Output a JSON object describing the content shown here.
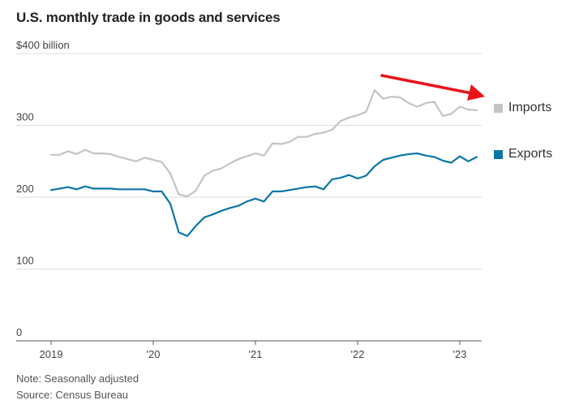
{
  "chart_data": {
    "type": "line",
    "title": "U.S. monthly trade in goods and services",
    "y_unit_label": "$400 billion",
    "ylim": [
      0,
      400
    ],
    "y_ticks": [
      {
        "value": 400,
        "label": "$400 billion"
      },
      {
        "value": 300,
        "label": "300"
      },
      {
        "value": 200,
        "label": "200"
      },
      {
        "value": 100,
        "label": "100"
      },
      {
        "value": 0,
        "label": "0"
      }
    ],
    "x_ticks": [
      {
        "value": "2019-01",
        "label": "2019"
      },
      {
        "value": "2020-01",
        "label": "'20"
      },
      {
        "value": "2021-01",
        "label": "'21"
      },
      {
        "value": "2022-01",
        "label": "'22"
      },
      {
        "value": "2023-01",
        "label": "'23"
      }
    ],
    "x_start": "2019-01",
    "x_end": "2023-02",
    "grid": true,
    "series": [
      {
        "name": "Imports",
        "color": "#c4c4c4",
        "values": [
          259,
          259,
          264,
          260,
          266,
          261,
          261,
          260,
          256,
          253,
          250,
          255,
          252,
          249,
          233,
          204,
          201,
          209,
          230,
          237,
          240,
          247,
          253,
          257,
          261,
          258,
          275,
          274,
          277,
          284,
          284,
          288,
          290,
          294,
          306,
          311,
          314,
          319,
          349,
          337,
          340,
          339,
          331,
          326,
          331,
          333,
          313,
          316,
          326,
          322,
          321
        ]
      },
      {
        "name": "Exports",
        "color": "#0b75a8",
        "values": [
          210,
          212,
          214,
          211,
          215,
          212,
          212,
          212,
          211,
          211,
          211,
          211,
          208,
          208,
          191,
          151,
          146,
          160,
          172,
          176,
          181,
          185,
          188,
          194,
          198,
          194,
          208,
          208,
          210,
          212,
          214,
          215,
          211,
          225,
          227,
          231,
          226,
          230,
          243,
          252,
          255,
          258,
          260,
          261,
          258,
          256,
          251,
          248,
          257,
          250,
          256
        ]
      }
    ],
    "annotation": {
      "type": "arrow",
      "color": "#e8141a",
      "points_to": "Imports"
    }
  },
  "legend": {
    "imports": {
      "label": "Imports",
      "color": "#c4c4c4"
    },
    "exports": {
      "label": "Exports",
      "color": "#0b75a8"
    }
  },
  "footer": {
    "note": "Note: Seasonally adjusted",
    "source": "Source: Census Bureau"
  }
}
